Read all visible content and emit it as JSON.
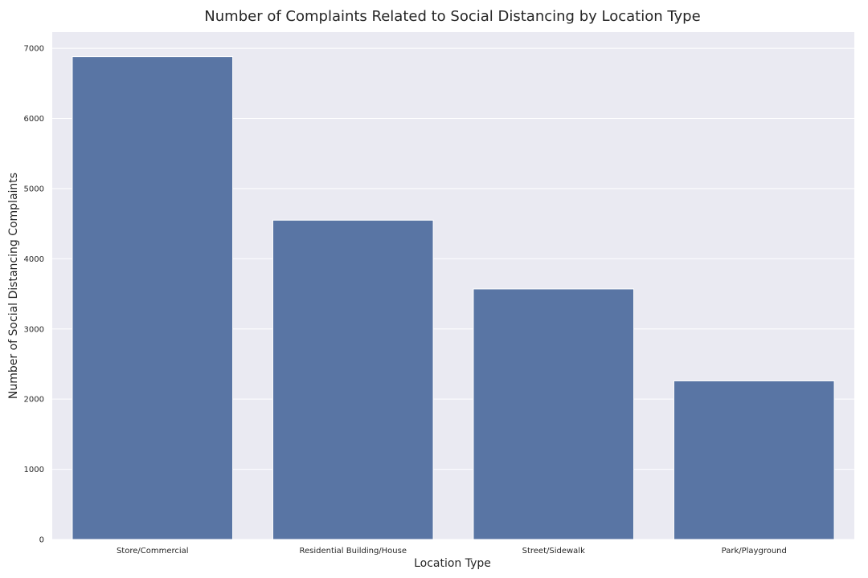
{
  "chart_data": {
    "type": "bar",
    "title": "Number of Complaints Related to Social Distancing by Location Type",
    "xlabel": "Location Type",
    "ylabel": "Number of Social Distancing Complaints",
    "categories": [
      "Store/Commercial",
      "Residential Building/House",
      "Street/Sidewalk",
      "Park/Playground"
    ],
    "values": [
      6880,
      4550,
      3570,
      2260
    ],
    "ylim": [
      0,
      7230
    ],
    "yticks": [
      "0",
      "1000",
      "2000",
      "3000",
      "4000",
      "5000",
      "6000",
      "7000"
    ],
    "grid": true,
    "bar_color": "#5975a4",
    "background_color": "#eaeaf2"
  }
}
